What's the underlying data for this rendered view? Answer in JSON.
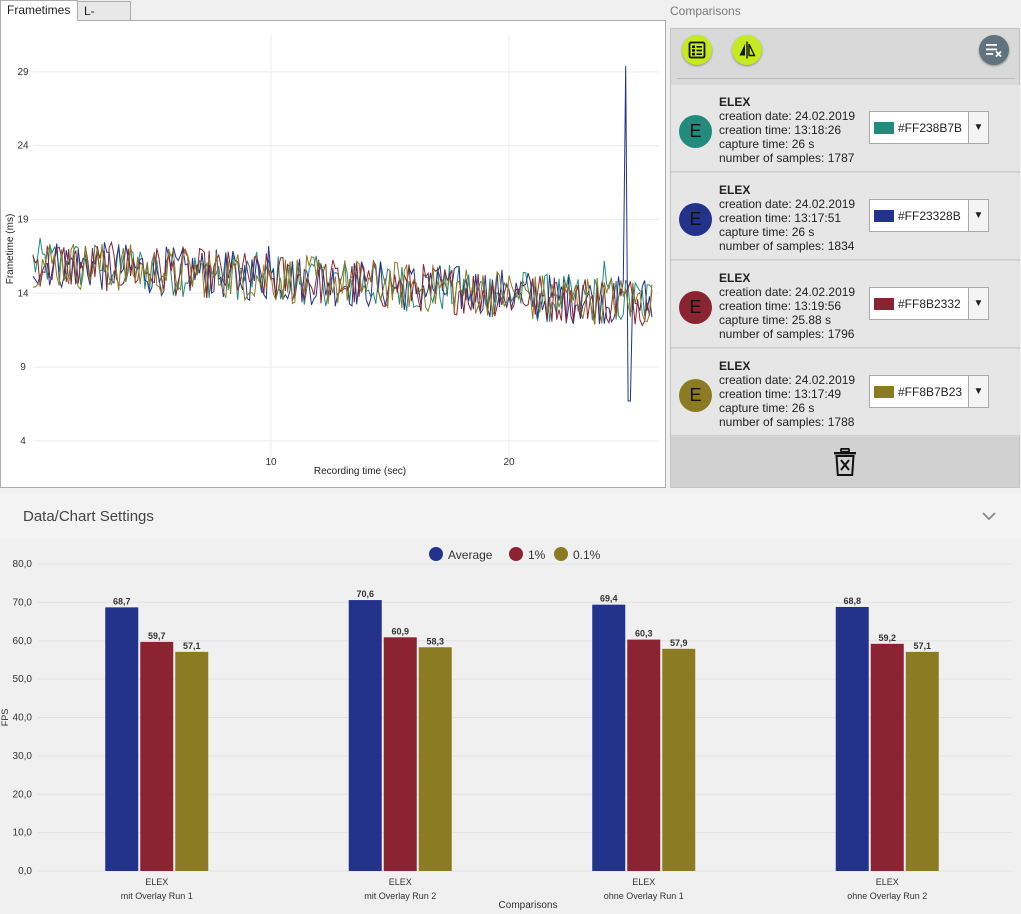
{
  "tabs": [
    {
      "label": "Frametimes",
      "active": true
    },
    {
      "label": "L-shape",
      "active": false
    }
  ],
  "frametime_chart": {
    "type": "line",
    "xlabel": "Recording time (sec)",
    "ylabel": "Frametime (ms)",
    "xlim": [
      0,
      26.3
    ],
    "ylim": [
      2.5,
      31.5
    ],
    "xticks": [
      10,
      20
    ],
    "yticks": [
      4,
      9,
      14,
      19,
      24,
      29
    ],
    "series": [
      {
        "name": "ELEX 13:18:26",
        "color": "#238B7B"
      },
      {
        "name": "ELEX 13:17:51",
        "color": "#23328B"
      },
      {
        "name": "ELEX 13:19:56",
        "color": "#8B2332"
      },
      {
        "name": "ELEX 13:17:49",
        "color": "#8B7B23"
      }
    ]
  },
  "comparisons": {
    "title": "Comparisons",
    "buttons": [
      {
        "name": "table-view-icon"
      },
      {
        "name": "swap-icon"
      },
      {
        "name": "clear-list-icon"
      }
    ],
    "items": [
      {
        "initial": "E",
        "game": "ELEX",
        "creation_date": "creation date: 24.02.2019",
        "creation_time": "creation time: 13:18:26",
        "capture_time": "capture time: 26 s",
        "samples": "number of samples: 1787",
        "color_hex": "#FF238B7B",
        "color": "#238B7B"
      },
      {
        "initial": "E",
        "game": "ELEX",
        "creation_date": "creation date: 24.02.2019",
        "creation_time": "creation time: 13:17:51",
        "capture_time": "capture time: 26 s",
        "samples": "number of samples: 1834",
        "color_hex": "#FF23328B",
        "color": "#23328B"
      },
      {
        "initial": "E",
        "game": "ELEX",
        "creation_date": "creation date: 24.02.2019",
        "creation_time": "creation time: 13:19:56",
        "capture_time": "capture time: 25.88 s",
        "samples": "number of samples: 1796",
        "color_hex": "#FF8B2332",
        "color": "#8B2332"
      },
      {
        "initial": "E",
        "game": "ELEX",
        "creation_date": "creation date: 24.02.2019",
        "creation_time": "creation time: 13:17:49",
        "capture_time": "capture time: 26 s",
        "samples": "number of samples: 1788",
        "color_hex": "#FF8B7B23",
        "color": "#8B7B23"
      }
    ]
  },
  "settings": {
    "title": "Data/Chart Settings"
  },
  "chart_data": {
    "type": "bar",
    "xlabel": "Comparisons",
    "ylabel": "FPS",
    "ylim": [
      0,
      80
    ],
    "yticks": [
      "0,0",
      "10,0",
      "20,0",
      "30,0",
      "40,0",
      "50,0",
      "60,0",
      "70,0",
      "80,0"
    ],
    "legend_position": "top-center",
    "categories": [
      [
        "ELEX",
        "mit Overlay Run 1"
      ],
      [
        "ELEX",
        "mit Overlay Run 2"
      ],
      [
        "ELEX",
        "ohne Overlay Run 1"
      ],
      [
        "ELEX",
        "ohne Overlay Run 2"
      ]
    ],
    "series": [
      {
        "name": "Average",
        "color": "#23328B",
        "values": [
          68.7,
          70.6,
          69.4,
          68.8
        ],
        "labels": [
          "68,7",
          "70,6",
          "69,4",
          "68,8"
        ]
      },
      {
        "name": "1%",
        "color": "#8B2332",
        "values": [
          59.7,
          60.9,
          60.3,
          59.2
        ],
        "labels": [
          "59,7",
          "60,9",
          "60,3",
          "59,2"
        ]
      },
      {
        "name": "0.1%",
        "color": "#8B7B23",
        "values": [
          57.1,
          58.3,
          57.9,
          57.1
        ],
        "labels": [
          "57,1",
          "58,3",
          "57,9",
          "57,1"
        ]
      }
    ]
  }
}
